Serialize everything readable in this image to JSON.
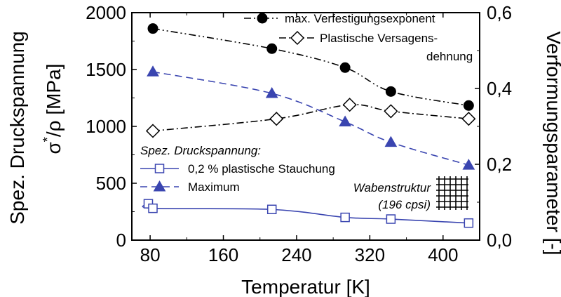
{
  "chart_data": {
    "type": "line",
    "xlabel": "Temperatur [K]",
    "ylabel_left_prefix": "Spez. Druckspannung",
    "ylabel_left_sigma": "σ",
    "ylabel_left_star": "*",
    "ylabel_left_rho": "/ρ",
    "ylabel_left_unit": " [MPa]",
    "ylabel_right": "Verformungsparameter [-]",
    "xlim": [
      60,
      440
    ],
    "ylim_left": [
      0,
      2000
    ],
    "ylim_right": [
      0.0,
      0.6
    ],
    "xticks": [
      80,
      160,
      240,
      320,
      400
    ],
    "xtick_labels": [
      "80",
      "160",
      "240",
      "320",
      "400"
    ],
    "yticks_left": [
      0,
      500,
      1000,
      1500,
      2000
    ],
    "ytick_labels_left": [
      "0",
      "500",
      "1000",
      "1500",
      "2000"
    ],
    "yticks_right": [
      0.0,
      0.2,
      0.4,
      0.6
    ],
    "ytick_labels_right": [
      "0,0",
      "0,2",
      "0,4",
      "0,6"
    ],
    "series": [
      {
        "name": "max. Verfestigungsexponent",
        "axis": "right",
        "marker": "filled-circle",
        "line": "dash-dot-dot",
        "color": "#000000",
        "x": [
          83,
          213,
          293,
          343,
          428
        ],
        "y": [
          0.558,
          0.505,
          0.455,
          0.392,
          0.355
        ]
      },
      {
        "name_line1": "Plastische Versagens-",
        "name_line2": "dehnung",
        "axis": "right",
        "marker": "open-diamond",
        "line": "dash-dot",
        "color": "#000000",
        "x": [
          83,
          218,
          298,
          343,
          428
        ],
        "y": [
          0.288,
          0.32,
          0.357,
          0.34,
          0.32
        ]
      },
      {
        "name": "0,2 % plastische Stauchung",
        "axis": "left",
        "marker": "open-square",
        "line": "solid",
        "color": "#3a45b0",
        "x": [
          78,
          83,
          213,
          293,
          343,
          428
        ],
        "y": [
          320,
          280,
          270,
          200,
          185,
          150
        ]
      },
      {
        "name": "Maximum",
        "axis": "left",
        "marker": "filled-triangle",
        "line": "dashed",
        "color": "#3a45b0",
        "x": [
          83,
          213,
          293,
          343,
          428
        ],
        "y": [
          1480,
          1290,
          1040,
          860,
          660
        ]
      }
    ],
    "legend_group_title": "Spez. Druckspannung:",
    "inset_label_line1": "Wabenstruktur",
    "inset_label_line2": "(196 cpsi)",
    "grid": false
  }
}
